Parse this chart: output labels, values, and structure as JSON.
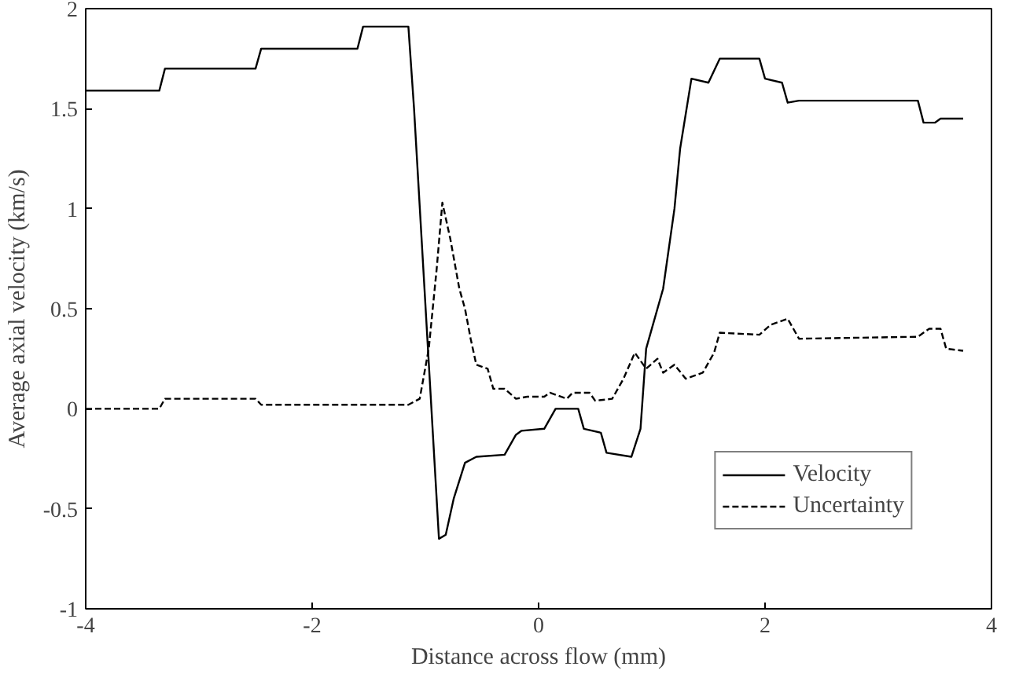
{
  "chart_data": {
    "type": "line",
    "xlabel": "Distance across flow (mm)",
    "ylabel": "Average axial velocity (km/s)",
    "xlim": [
      -4,
      4
    ],
    "ylim": [
      -1,
      2
    ],
    "xticks": [
      -4,
      -2,
      0,
      2,
      4
    ],
    "yticks": [
      -1,
      -0.5,
      0,
      0.5,
      1,
      1.5,
      2
    ],
    "grid": false,
    "legend": "bottom right",
    "marker": "none",
    "series": [
      {
        "name": "Velocity",
        "color": "#000000",
        "line_style": "solid",
        "x": [
          -4,
          -3.35,
          -3.3,
          -2.5,
          -2.45,
          -1.6,
          -1.55,
          -1.15,
          -1.1,
          -0.88,
          -0.82,
          -0.75,
          -0.65,
          -0.55,
          -0.3,
          -0.2,
          -0.15,
          0.05,
          0.15,
          0.35,
          0.4,
          0.55,
          0.6,
          0.82,
          0.9,
          0.95,
          1.1,
          1.2,
          1.25,
          1.35,
          1.5,
          1.6,
          1.95,
          2.0,
          2.15,
          2.2,
          2.3,
          3.35,
          3.4,
          3.5,
          3.55,
          3.75
        ],
        "values": [
          1.59,
          1.59,
          1.7,
          1.7,
          1.8,
          1.8,
          1.91,
          1.91,
          1.5,
          -0.65,
          -0.63,
          -0.45,
          -0.27,
          -0.24,
          -0.23,
          -0.13,
          -0.11,
          -0.1,
          0.0,
          0.0,
          -0.1,
          -0.12,
          -0.22,
          -0.24,
          -0.1,
          0.3,
          0.6,
          1.0,
          1.3,
          1.65,
          1.63,
          1.75,
          1.75,
          1.65,
          1.63,
          1.53,
          1.54,
          1.54,
          1.43,
          1.43,
          1.45,
          1.45
        ]
      },
      {
        "name": "Uncertainty",
        "color": "#000000",
        "line_style": "dashed",
        "x": [
          -4,
          -3.35,
          -3.3,
          -2.5,
          -2.45,
          -1.15,
          -1.05,
          -0.97,
          -0.9,
          -0.85,
          -0.78,
          -0.7,
          -0.65,
          -0.6,
          -0.55,
          -0.45,
          -0.4,
          -0.3,
          -0.2,
          -0.1,
          0.05,
          0.1,
          0.25,
          0.3,
          0.45,
          0.5,
          0.65,
          0.75,
          0.85,
          0.95,
          1.05,
          1.1,
          1.2,
          1.3,
          1.45,
          1.55,
          1.6,
          1.95,
          2.05,
          2.2,
          2.3,
          3.35,
          3.45,
          3.55,
          3.6,
          3.75
        ],
        "values": [
          0,
          0,
          0.05,
          0.05,
          0.02,
          0.02,
          0.05,
          0.3,
          0.7,
          1.03,
          0.85,
          0.6,
          0.5,
          0.35,
          0.22,
          0.2,
          0.1,
          0.1,
          0.05,
          0.06,
          0.06,
          0.08,
          0.05,
          0.08,
          0.08,
          0.04,
          0.05,
          0.15,
          0.28,
          0.2,
          0.25,
          0.18,
          0.22,
          0.15,
          0.18,
          0.28,
          0.38,
          0.37,
          0.42,
          0.45,
          0.35,
          0.36,
          0.4,
          0.4,
          0.3,
          0.29
        ]
      }
    ]
  }
}
